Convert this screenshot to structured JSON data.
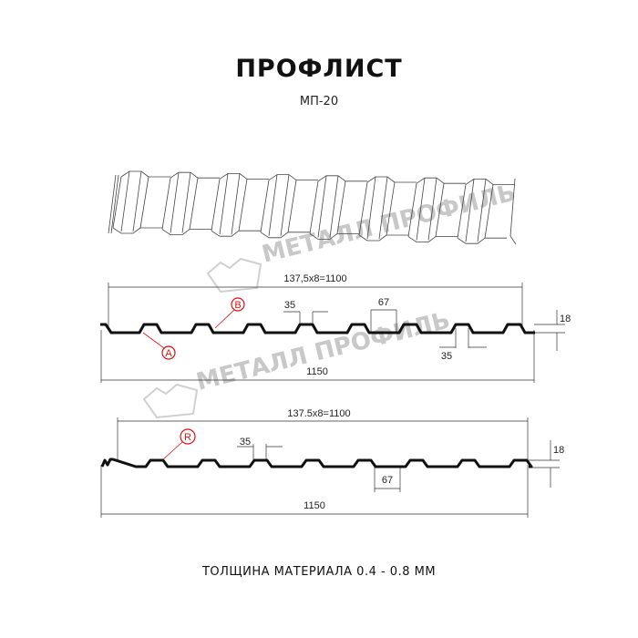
{
  "title": "ПРОФЛИСТ",
  "subtitle": "МП-20",
  "footer": "ТОЛЩИНА МАТЕРИАЛА 0.4 - 0.8 ММ",
  "watermark": "МЕТАЛЛ ПРОФИЛЬ",
  "colors": {
    "profile": "#111111",
    "marker": "#e01010",
    "dimension": "#333333",
    "watermark": "#c8c8c8"
  },
  "profile_1": {
    "span_label": "137,5x8=1100",
    "total_label": "1150",
    "height_label": "18",
    "rib_top_label": "35",
    "rib_bottom_label": "35",
    "gap_label": "67",
    "marker_a": "A",
    "marker_b": "B"
  },
  "profile_2": {
    "span_label": "137.5x8=1100",
    "total_label": "1150",
    "height_label": "18",
    "rib_top_label": "35",
    "gap_label": "67",
    "marker_r": "R"
  }
}
